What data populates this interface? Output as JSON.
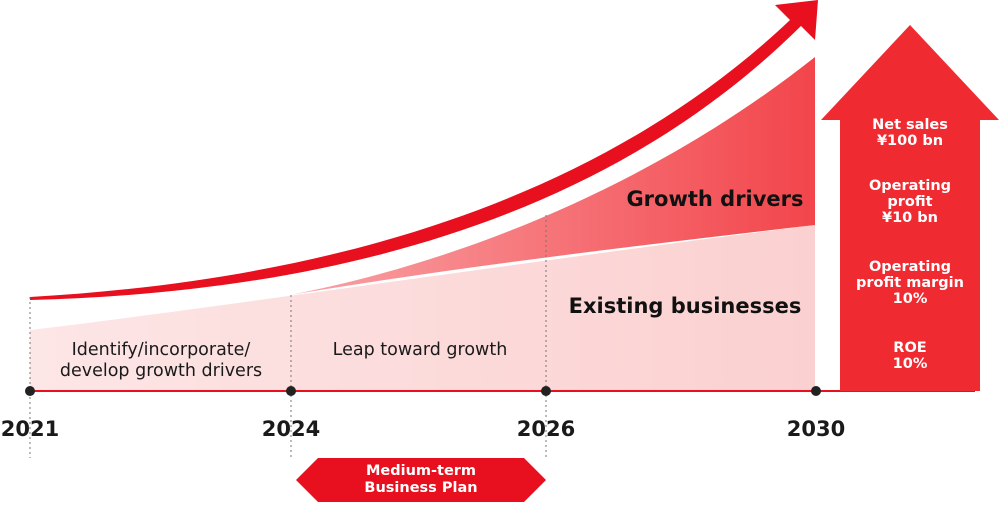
{
  "phases": {
    "first": "Identify/incorporate/\ndevelop growth drivers",
    "second": "Leap toward growth"
  },
  "bands": {
    "growth": "Growth drivers",
    "existing": "Existing businesses"
  },
  "years": [
    "2021",
    "2024",
    "2026",
    "2030"
  ],
  "targets": [
    "Net sales\n¥100 bn",
    "Operating\nprofit\n¥10 bn",
    "Operating\nprofit margin\n10%",
    "ROE\n10%"
  ],
  "plan": "Medium-term\nBusiness Plan",
  "colors": {
    "accent": "#e8101e",
    "growth_fill": "#f25a5f",
    "existing_fill": "#fcdcdc",
    "target_arrow": "#f02a31",
    "axis": "#222222"
  }
}
